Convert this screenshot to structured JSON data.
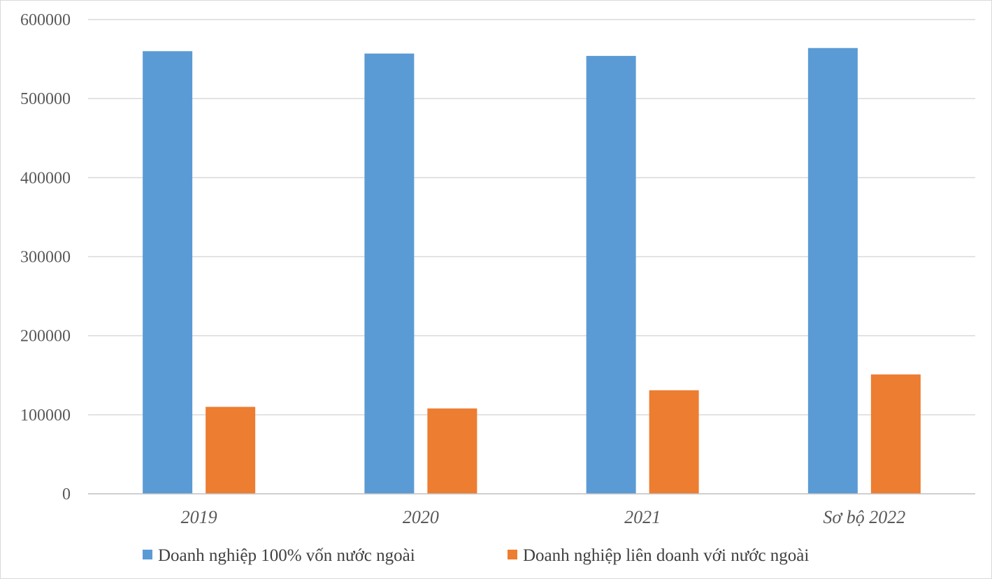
{
  "chart_data": {
    "type": "bar",
    "categories": [
      "2019",
      "2020",
      "2021",
      "Sơ bộ 2022"
    ],
    "series": [
      {
        "name": "Doanh nghiệp 100% vốn nước ngoài",
        "values": [
          560000,
          557000,
          554000,
          564000
        ],
        "color": "#5b9bd5"
      },
      {
        "name": "Doanh nghiệp liên doanh với nước ngoài",
        "values": [
          110000,
          108000,
          131000,
          151000
        ],
        "color": "#ed7d31"
      }
    ],
    "yticks": [
      "0",
      "100000",
      "200000",
      "300000",
      "400000",
      "500000",
      "600000"
    ],
    "ylim": [
      0,
      600000
    ],
    "grid": true,
    "legend_position": "bottom",
    "title": "",
    "xlabel": "",
    "ylabel": ""
  }
}
